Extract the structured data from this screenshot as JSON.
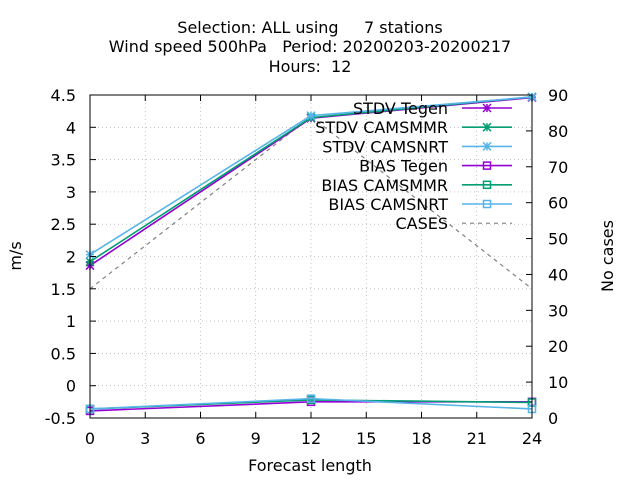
{
  "chart_data": {
    "type": "line",
    "title_lines": [
      "Selection: ALL using     7 stations",
      "Wind speed 500hPa   Period: 20200203-20200217",
      "Hours:  12"
    ],
    "xlabel": "Forecast length",
    "ylabel": "m/s",
    "y2label": "No cases",
    "x": [
      0,
      12,
      24
    ],
    "xticks": [
      0,
      3,
      6,
      9,
      12,
      15,
      18,
      21,
      24
    ],
    "xlim": [
      0,
      24
    ],
    "ylim": [
      -0.5,
      4.5
    ],
    "yticks": [
      -0.5,
      0,
      0.5,
      1,
      1.5,
      2,
      2.5,
      3,
      3.5,
      4,
      4.5
    ],
    "ytick_labels": [
      "-0.5",
      "0",
      "0.5",
      "1",
      "1.5",
      "2",
      "2.5",
      "3",
      "3.5",
      "4",
      "4.5"
    ],
    "y2lim": [
      0,
      90
    ],
    "y2ticks": [
      0,
      10,
      20,
      30,
      40,
      50,
      60,
      70,
      80,
      90
    ],
    "grid": true,
    "legend_position": "top-right",
    "series": [
      {
        "name": "STDV Tegen",
        "axis": "y",
        "color": "#9400d3",
        "marker": "x-star",
        "dash": "",
        "values": [
          1.86,
          4.14,
          4.46
        ]
      },
      {
        "name": "STDV CAMSMMR",
        "axis": "y",
        "color": "#009e73",
        "marker": "x-star",
        "dash": "",
        "values": [
          1.92,
          4.15,
          4.47
        ]
      },
      {
        "name": "STDV CAMSNRT",
        "axis": "y",
        "color": "#56b4e9",
        "marker": "x-star",
        "dash": "",
        "values": [
          2.03,
          4.18,
          4.47
        ]
      },
      {
        "name": "BIAS Tegen",
        "axis": "y",
        "color": "#9400d3",
        "marker": "square",
        "dash": "",
        "values": [
          -0.39,
          -0.25,
          -0.25
        ]
      },
      {
        "name": "BIAS CAMSMMR",
        "axis": "y",
        "color": "#009e73",
        "marker": "square",
        "dash": "",
        "values": [
          -0.36,
          -0.22,
          -0.26
        ]
      },
      {
        "name": "BIAS CAMSNRT",
        "axis": "y",
        "color": "#56b4e9",
        "marker": "square",
        "dash": "",
        "values": [
          -0.36,
          -0.2,
          -0.36
        ]
      },
      {
        "name": "CASES",
        "axis": "y2",
        "color": "#808080",
        "marker": "none",
        "dash": "4,4",
        "values": [
          36,
          84,
          36
        ]
      }
    ]
  }
}
